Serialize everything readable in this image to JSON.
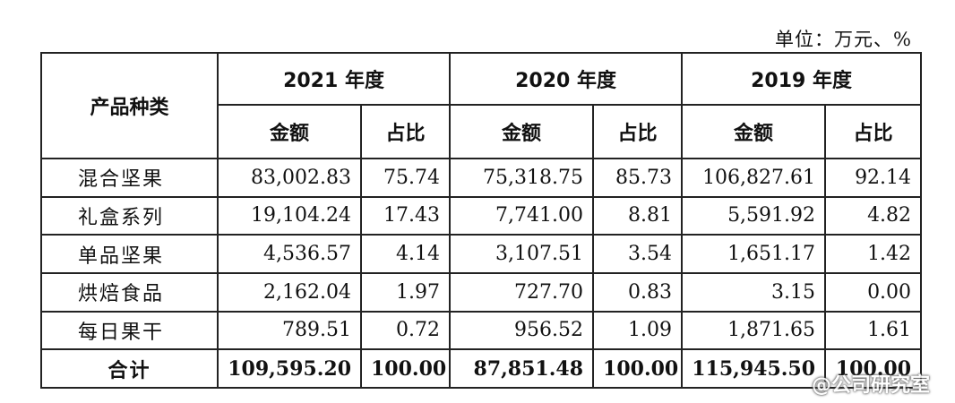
{
  "unit_label": "单位：万元、%",
  "header": {
    "category": "产品种类",
    "years": [
      "2021 年度",
      "2020 年度",
      "2019 年度"
    ],
    "amount": "金额",
    "ratio": "占比"
  },
  "rows": [
    {
      "name": "混合坚果",
      "cells": [
        "83,002.83",
        "75.74",
        "75,318.75",
        "85.73",
        "106,827.61",
        "92.14"
      ]
    },
    {
      "name": "礼盒系列",
      "cells": [
        "19,104.24",
        "17.43",
        "7,741.00",
        "8.81",
        "5,591.92",
        "4.82"
      ]
    },
    {
      "name": "单品坚果",
      "cells": [
        "4,536.57",
        "4.14",
        "3,107.51",
        "3.54",
        "1,651.17",
        "1.42"
      ]
    },
    {
      "name": "烘焙食品",
      "cells": [
        "2,162.04",
        "1.97",
        "727.70",
        "0.83",
        "3.15",
        "0.00"
      ]
    },
    {
      "name": "每日果干",
      "cells": [
        "789.51",
        "0.72",
        "956.52",
        "1.09",
        "1,871.65",
        "1.61"
      ]
    }
  ],
  "total": {
    "name": "合计",
    "cells": [
      "109,595.20",
      "100.00",
      "87,851.48",
      "100.00",
      "115,945.50",
      "100.00"
    ]
  },
  "watermark": "@公司研究室"
}
